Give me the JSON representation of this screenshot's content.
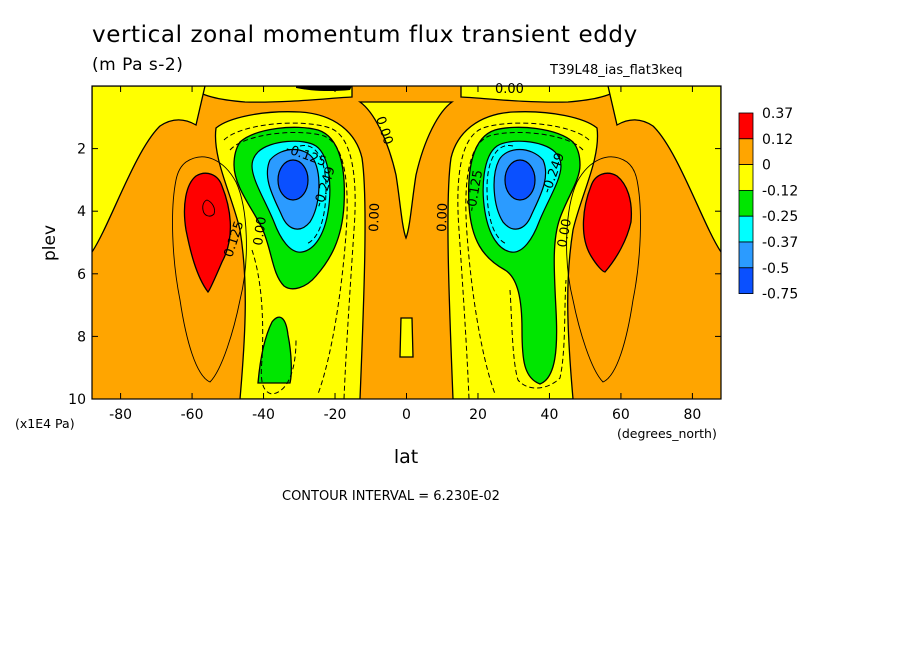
{
  "header": {
    "title": "vertical zonal momentum flux transient eddy",
    "units": "(m Pa s-2)",
    "run_name": "T39L48_ias_flat3keq"
  },
  "footer": {
    "contour_interval": "CONTOUR INTERVAL = 6.230E-02"
  },
  "colors": {
    "red": "#ff0000",
    "orange": "#ffa500",
    "yellow": "#ffff00",
    "green": "#00e600",
    "cyan": "#00ffff",
    "light_blue": "#2b9bff",
    "blue": "#0a50ff"
  },
  "chart_data": {
    "type": "contour",
    "title": "vertical zonal momentum flux transient eddy",
    "subtitle": "(m Pa s-2)",
    "xlabel": "lat",
    "x_units": "(degrees_north)",
    "ylabel": "plev",
    "y_units": "(x1E4 Pa)",
    "xlim": [
      -88,
      88
    ],
    "ylim": [
      10,
      0
    ],
    "x_ticks": [
      -80,
      -60,
      -40,
      -20,
      0,
      20,
      40,
      60,
      80
    ],
    "y_ticks": [
      2,
      4,
      6,
      8,
      10
    ],
    "colorbar": {
      "labels": [
        "0.37",
        "0.12",
        "0",
        "-0.12",
        "-0.25",
        "-0.37",
        "-0.5",
        "-0.75"
      ],
      "colors": [
        "#ff0000",
        "#ffa500",
        "#ffff00",
        "#00e600",
        "#00ffff",
        "#2b9bff",
        "#0a50ff"
      ]
    },
    "contour_labels": [
      "0.00",
      "-0.125",
      "0.125",
      "-0.249",
      "0.00",
      "0.00",
      "0.00",
      "0.00",
      "-0.125",
      "-0.249",
      "0.00",
      "0.00",
      "0.125"
    ],
    "features": [
      {
        "label": "positive maximum",
        "lat": -56,
        "plev": 4.0,
        "value": 0.37
      },
      {
        "label": "negative minimum",
        "lat": -32,
        "plev": 2.9,
        "value": -0.75
      },
      {
        "label": "negative minimum",
        "lat": 32,
        "plev": 2.9,
        "value": -0.75
      },
      {
        "label": "positive maximum",
        "lat": 56,
        "plev": 4.0,
        "value": 0.37
      }
    ]
  }
}
